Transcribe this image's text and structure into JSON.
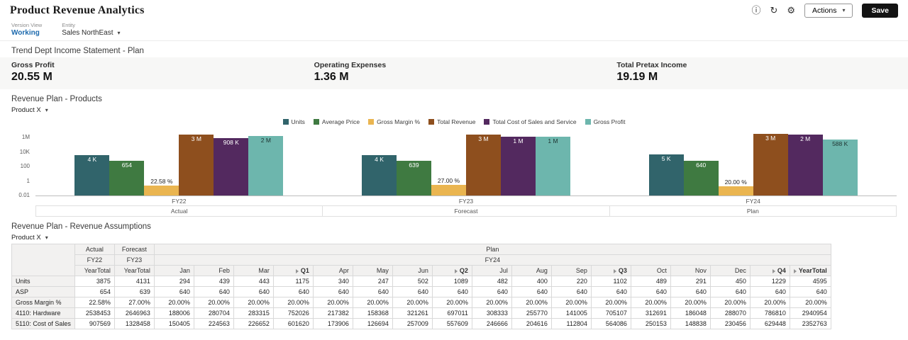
{
  "header": {
    "title": "Product Revenue Analytics",
    "actions_label": "Actions",
    "save_label": "Save",
    "icons": [
      {
        "name": "info-icon",
        "glyph": "ⓘ"
      },
      {
        "name": "refresh-icon",
        "glyph": "↻"
      },
      {
        "name": "settings-icon",
        "glyph": "⚙"
      }
    ]
  },
  "glyphs": {
    "caret_down": "▾"
  },
  "pov": {
    "version_label": "Version View",
    "version_value": "Working",
    "entity_label": "Entity",
    "entity_value": "Sales NorthEast"
  },
  "kpi_section": {
    "title": "Trend Dept Income Statement - Plan",
    "tiles": [
      {
        "label": "Gross Profit",
        "value": "20.55 M"
      },
      {
        "label": "Operating Expenses",
        "value": "1.36 M"
      },
      {
        "label": "Total Pretax Income",
        "value": "19.19 M"
      }
    ]
  },
  "chart_section": {
    "title": "Revenue Plan - Products",
    "filter_label": "Product X"
  },
  "chart_data": {
    "type": "bar",
    "scale": "log",
    "log_min": -2,
    "log_max": 7,
    "legend_position": "top-center",
    "y_ticks": [
      {
        "label": "1M",
        "value": 1000000
      },
      {
        "label": "10K",
        "value": 10000
      },
      {
        "label": "100",
        "value": 100
      },
      {
        "label": "1",
        "value": 1
      },
      {
        "label": "0.01",
        "value": 0.01
      }
    ],
    "groups": [
      {
        "period": "FY22",
        "scenario": "Actual"
      },
      {
        "period": "FY23",
        "scenario": "Forecast"
      },
      {
        "period": "FY24",
        "scenario": "Plan"
      }
    ],
    "series": [
      {
        "name": "Units",
        "color": "#31646b",
        "label_style": "light",
        "label_pos": "inside",
        "values": [
          3875,
          4131,
          4595
        ],
        "labels": [
          "4 K",
          "4 K",
          "5 K"
        ]
      },
      {
        "name": "Average Price",
        "color": "#3f7a41",
        "label_style": "light",
        "label_pos": "inside",
        "values": [
          654,
          639,
          640
        ],
        "labels": [
          "654",
          "639",
          "640"
        ]
      },
      {
        "name": "Gross Margin %",
        "color": "#eab550",
        "label_style": "dark",
        "label_pos": "above",
        "values": [
          0.2258,
          0.27,
          0.2
        ],
        "labels": [
          "22.58 %",
          "27.00 %",
          "20.00 %"
        ]
      },
      {
        "name": "Total Revenue",
        "color": "#8e4f1e",
        "label_style": "light",
        "label_pos": "inside",
        "values": [
          2538453,
          2646963,
          2940954
        ],
        "labels": [
          "3 M",
          "3 M",
          "3 M"
        ]
      },
      {
        "name": "Total Cost of Sales and Service",
        "color": "#53295f",
        "label_style": "light",
        "label_pos": "inside",
        "values": [
          907569,
          1328458,
          2352763
        ],
        "labels": [
          "908 K",
          "1 M",
          "2 M"
        ]
      },
      {
        "name": "Gross Profit",
        "color": "#6db6ad",
        "label_style": "dark",
        "label_pos": "inside",
        "values": [
          1630884,
          1318505,
          588191
        ],
        "labels": [
          "2 M",
          "1 M",
          "588 K"
        ]
      }
    ]
  },
  "table_section": {
    "title": "Revenue Plan - Revenue Assumptions",
    "filter_label": "Product X",
    "scenario_row": [
      {
        "label": "Actual",
        "span": 1
      },
      {
        "label": "Forecast",
        "span": 1
      },
      {
        "label": "Plan",
        "span": 17
      }
    ],
    "year_row": [
      {
        "label": "FY22",
        "span": 1
      },
      {
        "label": "FY23",
        "span": 1
      },
      {
        "label": "FY24",
        "span": 17
      }
    ],
    "period_row": [
      {
        "label": "YearTotal"
      },
      {
        "label": "YearTotal"
      },
      {
        "label": "Jan"
      },
      {
        "label": "Feb"
      },
      {
        "label": "Mar"
      },
      {
        "label": "Q1",
        "drill": true
      },
      {
        "label": "Apr"
      },
      {
        "label": "May"
      },
      {
        "label": "Jun"
      },
      {
        "label": "Q2",
        "drill": true
      },
      {
        "label": "Jul"
      },
      {
        "label": "Aug"
      },
      {
        "label": "Sep"
      },
      {
        "label": "Q3",
        "drill": true
      },
      {
        "label": "Oct"
      },
      {
        "label": "Nov"
      },
      {
        "label": "Dec"
      },
      {
        "label": "Q4",
        "drill": true
      },
      {
        "label": "YearTotal",
        "drill": true
      }
    ],
    "rows": [
      {
        "label": "Units",
        "values": [
          "3875",
          "4131",
          "294",
          "439",
          "443",
          "1175",
          "340",
          "247",
          "502",
          "1089",
          "482",
          "400",
          "220",
          "1102",
          "489",
          "291",
          "450",
          "1229",
          "4595"
        ]
      },
      {
        "label": "ASP",
        "values": [
          "654",
          "639",
          "640",
          "640",
          "640",
          "640",
          "640",
          "640",
          "640",
          "640",
          "640",
          "640",
          "640",
          "640",
          "640",
          "640",
          "640",
          "640",
          "640"
        ]
      },
      {
        "label": "Gross Margin %",
        "values": [
          "22.58%",
          "27.00%",
          "20.00%",
          "20.00%",
          "20.00%",
          "20.00%",
          "20.00%",
          "20.00%",
          "20.00%",
          "20.00%",
          "20.00%",
          "20.00%",
          "20.00%",
          "20.00%",
          "20.00%",
          "20.00%",
          "20.00%",
          "20.00%",
          "20.00%"
        ]
      },
      {
        "label": "4110: Hardware",
        "values": [
          "2538453",
          "2646963",
          "188006",
          "280704",
          "283315",
          "752026",
          "217382",
          "158368",
          "321261",
          "697011",
          "308333",
          "255770",
          "141005",
          "705107",
          "312691",
          "186048",
          "288070",
          "786810",
          "2940954"
        ]
      },
      {
        "label": "5110: Cost of Sales",
        "values": [
          "907569",
          "1328458",
          "150405",
          "224563",
          "226652",
          "601620",
          "173906",
          "126694",
          "257009",
          "557609",
          "246666",
          "204616",
          "112804",
          "564086",
          "250153",
          "148838",
          "230456",
          "629448",
          "2352763"
        ]
      }
    ]
  },
  "colors": {
    "accent_link": "#1b69ad",
    "save_button_bg": "#131313",
    "header_fill": "#f2f1f0"
  }
}
